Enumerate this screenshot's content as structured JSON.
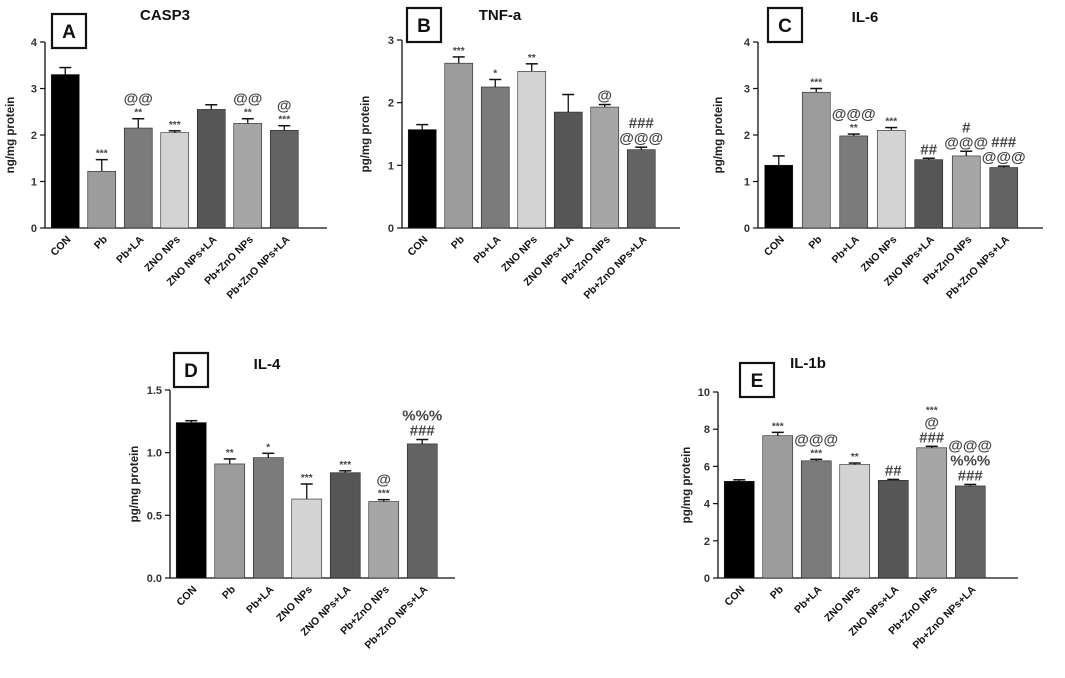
{
  "figure": {
    "panels": [
      {
        "letter": "A",
        "chart_data": {
          "type": "bar",
          "title": "CASP3",
          "ylabel": "ng/mg protein",
          "xlabel": "",
          "ylim": [
            0,
            4
          ],
          "yticks": [
            0,
            1,
            2,
            3,
            4
          ],
          "yticklabels": [
            "0",
            "1",
            "2",
            "3",
            "4"
          ],
          "categories": [
            "CON",
            "Pb",
            "Pb+LA",
            "ZNO NPs",
            "ZNO NPs+LA",
            "Pb+ZnO NPs",
            "Pb+ZnO NPs+LA"
          ],
          "values": [
            3.3,
            1.22,
            2.15,
            2.05,
            2.55,
            2.25,
            2.1
          ],
          "errors": [
            0.15,
            0.25,
            0.2,
            0.04,
            0.1,
            0.1,
            0.1
          ],
          "colors": [
            "#000000",
            "#9c9c9c",
            "#7b7b7b",
            "#d3d3d3",
            "#565656",
            "#a6a6a6",
            "#636363"
          ],
          "annotations": [
            [],
            [
              "***"
            ],
            [
              "**",
              "@@"
            ],
            [
              "***"
            ],
            [],
            [
              "**",
              "@@"
            ],
            [
              "***",
              "@"
            ]
          ]
        }
      },
      {
        "letter": "B",
        "chart_data": {
          "type": "bar",
          "title": "TNF-a",
          "ylabel": "pg/mg protein",
          "xlabel": "",
          "ylim": [
            0,
            3
          ],
          "yticks": [
            0,
            1,
            2,
            3
          ],
          "yticklabels": [
            "0",
            "1",
            "2",
            "3"
          ],
          "categories": [
            "CON",
            "Pb",
            "Pb+LA",
            "ZNO NPs",
            "ZNO NPs+LA",
            "Pb+ZnO NPs",
            "Pb+ZnO NPs+LA"
          ],
          "values": [
            1.57,
            2.63,
            2.25,
            2.5,
            1.85,
            1.93,
            1.25
          ],
          "errors": [
            0.08,
            0.1,
            0.12,
            0.12,
            0.28,
            0.04,
            0.04
          ],
          "colors": [
            "#000000",
            "#9c9c9c",
            "#7b7b7b",
            "#d3d3d3",
            "#565656",
            "#a6a6a6",
            "#636363"
          ],
          "annotations": [
            [],
            [
              "***"
            ],
            [
              "*"
            ],
            [
              "**"
            ],
            [],
            [
              "@"
            ],
            [
              "@@@",
              "###"
            ]
          ]
        }
      },
      {
        "letter": "C",
        "chart_data": {
          "type": "bar",
          "title": "IL-6",
          "ylabel": "pg/mg protein",
          "xlabel": "",
          "ylim": [
            0,
            4
          ],
          "yticks": [
            0,
            1,
            2,
            3,
            4
          ],
          "yticklabels": [
            "0",
            "1",
            "2",
            "3",
            "4"
          ],
          "categories": [
            "CON",
            "Pb",
            "Pb+LA",
            "ZNO NPs",
            "ZNO NPs+LA",
            "Pb+ZnO NPs",
            "Pb+ZnO NPs+LA"
          ],
          "values": [
            1.35,
            2.92,
            1.98,
            2.1,
            1.47,
            1.55,
            1.3
          ],
          "errors": [
            0.2,
            0.08,
            0.04,
            0.06,
            0.03,
            0.1,
            0.03
          ],
          "colors": [
            "#000000",
            "#9c9c9c",
            "#7b7b7b",
            "#d3d3d3",
            "#565656",
            "#a6a6a6",
            "#636363"
          ],
          "annotations": [
            [],
            [
              "***"
            ],
            [
              "**",
              "@@@"
            ],
            [
              "***"
            ],
            [
              "##"
            ],
            [
              "@@@",
              "#"
            ],
            [
              "@@@",
              "###"
            ]
          ]
        }
      },
      {
        "letter": "D",
        "chart_data": {
          "type": "bar",
          "title": "IL-4",
          "ylabel": "pg/mg protein",
          "xlabel": "",
          "ylim": [
            0,
            1.5
          ],
          "yticks": [
            0,
            0.5,
            1.0,
            1.5
          ],
          "yticklabels": [
            "0.0",
            "0.5",
            "1.0",
            "1.5"
          ],
          "categories": [
            "CON",
            "Pb",
            "Pb+LA",
            "ZNO NPs",
            "ZNO NPs+LA",
            "Pb+ZnO NPs",
            "Pb+ZnO NPs+LA"
          ],
          "values": [
            1.24,
            0.91,
            0.96,
            0.63,
            0.84,
            0.61,
            1.07
          ],
          "errors": [
            0.015,
            0.04,
            0.035,
            0.12,
            0.015,
            0.015,
            0.035
          ],
          "colors": [
            "#000000",
            "#9c9c9c",
            "#7b7b7b",
            "#d3d3d3",
            "#565656",
            "#a6a6a6",
            "#636363"
          ],
          "annotations": [
            [],
            [
              "**"
            ],
            [
              "*"
            ],
            [
              "***"
            ],
            [
              "***"
            ],
            [
              "***",
              "@"
            ],
            [
              "###",
              "%%%"
            ]
          ]
        }
      },
      {
        "letter": "E",
        "chart_data": {
          "type": "bar",
          "title": "IL-1b",
          "ylabel": "pg/mg protein",
          "xlabel": "",
          "ylim": [
            0,
            10
          ],
          "yticks": [
            0,
            2,
            4,
            6,
            8,
            10
          ],
          "yticklabels": [
            "0",
            "2",
            "4",
            "6",
            "8",
            "10"
          ],
          "categories": [
            "CON",
            "Pb",
            "Pb+LA",
            "ZNO NPs",
            "ZNO NPs+LA",
            "Pb+ZnO NPs",
            "Pb+ZnO NPs+LA"
          ],
          "values": [
            5.2,
            7.65,
            6.3,
            6.1,
            5.25,
            7.0,
            4.95
          ],
          "errors": [
            0.08,
            0.18,
            0.08,
            0.08,
            0.05,
            0.08,
            0.08
          ],
          "colors": [
            "#000000",
            "#9c9c9c",
            "#7b7b7b",
            "#d3d3d3",
            "#565656",
            "#a6a6a6",
            "#636363"
          ],
          "annotations": [
            [],
            [
              "***"
            ],
            [
              "***",
              "@@@"
            ],
            [
              "**"
            ],
            [
              "##"
            ],
            [
              "###",
              "@",
              "***"
            ],
            [
              "###",
              "%%%",
              "@@@"
            ]
          ]
        }
      }
    ]
  }
}
